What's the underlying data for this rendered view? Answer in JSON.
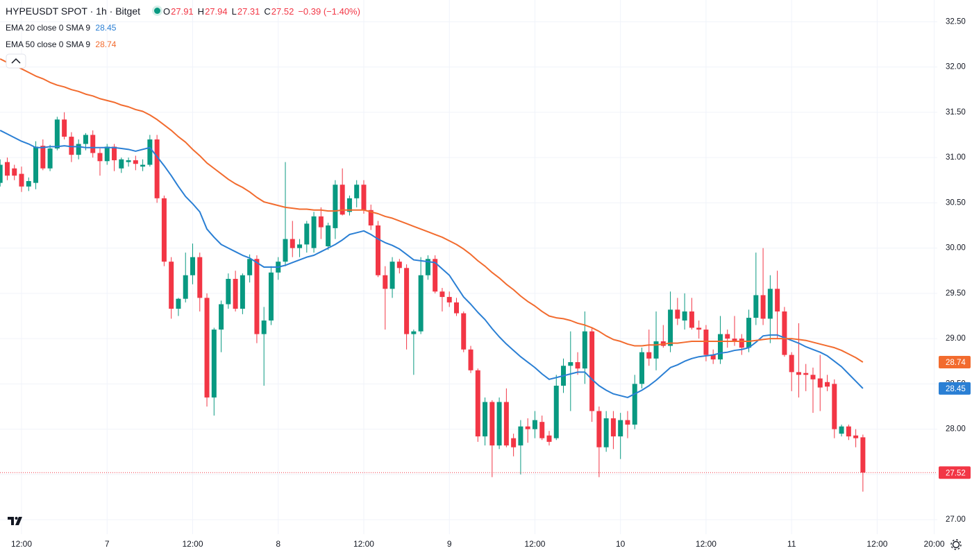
{
  "chart_data": {
    "type": "candlestick",
    "title": "HYPEUSDT SPOT · 1h · Bitget",
    "header": {
      "open_label": "O",
      "open": 27.91,
      "high_label": "H",
      "high": 27.94,
      "low_label": "L",
      "low": 27.31,
      "close_label": "C",
      "close": 27.52,
      "change": "−0.39 (−1.40%)"
    },
    "categories": [
      null,
      null,
      null,
      "12:00",
      null,
      null,
      null,
      null,
      null,
      null,
      null,
      null,
      null,
      null,
      null,
      "7",
      null,
      null,
      null,
      null,
      null,
      null,
      null,
      null,
      null,
      null,
      null,
      "12:00",
      null,
      null,
      null,
      null,
      null,
      null,
      null,
      null,
      null,
      null,
      null,
      "8",
      null,
      null,
      null,
      null,
      null,
      null,
      null,
      null,
      null,
      null,
      null,
      "12:00",
      null,
      null,
      null,
      null,
      null,
      null,
      null,
      null,
      null,
      null,
      null,
      "9",
      null,
      null,
      null,
      null,
      null,
      null,
      null,
      null,
      null,
      null,
      null,
      "12:00",
      null,
      null,
      null,
      null,
      null,
      null,
      null,
      null,
      null,
      null,
      null,
      "10",
      null,
      null,
      null,
      null,
      null,
      null,
      null,
      null,
      null,
      null,
      null,
      "12:00",
      null,
      null,
      null,
      null,
      null,
      null,
      null,
      null,
      null,
      null,
      null,
      "11",
      null,
      null,
      null,
      null,
      null,
      null,
      null,
      null,
      null,
      null,
      null,
      "12:00",
      null,
      null,
      null,
      null,
      null,
      null,
      null,
      "20:00"
    ],
    "open": [
      30.72,
      30.95,
      30.88,
      30.82,
      30.68,
      30.72,
      31.13,
      30.88,
      31.1,
      31.42,
      31.23,
      31.03,
      31.15,
      31.25,
      31.05,
      30.96,
      31.12,
      30.88,
      30.95,
      30.97,
      30.9,
      30.92,
      31.2,
      30.55,
      29.85,
      29.33,
      29.44,
      29.7,
      29.9,
      29.45,
      28.35,
      29.1,
      29.38,
      29.66,
      29.33,
      29.7,
      29.88,
      29.05,
      29.2,
      29.73,
      29.85,
      30.1,
      30.0,
      30.04,
      30.0,
      30.35,
      30.02,
      30.22,
      30.7,
      30.4,
      30.55,
      30.7,
      30.42,
      30.25,
      29.7,
      29.55,
      29.85,
      29.78,
      29.05,
      29.08,
      29.7,
      29.88,
      29.52,
      29.46,
      29.4,
      29.28,
      28.88,
      28.65,
      27.92,
      28.3,
      27.82,
      28.3,
      27.9,
      27.82,
      28.03,
      28.0,
      28.08,
      27.93,
      27.9,
      28.48,
      28.7,
      28.74,
      28.67,
      29.08,
      28.2,
      27.8,
      28.12,
      27.92,
      28.1,
      28.05,
      28.5,
      28.85,
      28.78,
      28.97,
      28.92,
      29.32,
      29.2,
      29.3,
      29.12,
      29.1,
      28.82,
      28.77,
      29.05,
      29.0,
      29.0,
      28.9,
      29.23,
      29.48,
      29.22,
      29.55,
      29.3,
      28.82,
      28.63,
      28.62,
      28.6,
      28.56,
      28.52,
      28.5,
      27.95,
      28.03,
      27.93,
      27.91,
      null,
      null,
      null,
      null,
      null,
      null,
      null,
      null,
      null,
      null
    ],
    "high": [
      30.98,
      31.0,
      30.92,
      30.9,
      30.78,
      31.18,
      31.2,
      31.14,
      31.45,
      31.5,
      31.28,
      31.2,
      31.27,
      31.3,
      31.1,
      31.15,
      31.15,
      31.0,
      31.0,
      31.02,
      30.98,
      31.25,
      31.25,
      30.58,
      29.9,
      29.45,
      29.95,
      30.05,
      29.95,
      29.5,
      29.12,
      29.42,
      29.72,
      29.75,
      29.72,
      29.93,
      29.92,
      29.35,
      29.8,
      29.9,
      30.95,
      30.3,
      30.1,
      30.3,
      30.4,
      30.45,
      30.28,
      30.75,
      30.88,
      30.58,
      30.75,
      30.75,
      30.48,
      30.3,
      29.8,
      29.9,
      29.88,
      29.82,
      29.1,
      29.9,
      29.92,
      29.92,
      29.56,
      29.52,
      29.45,
      29.3,
      28.92,
      28.67,
      28.35,
      28.32,
      28.35,
      28.45,
      27.95,
      28.1,
      28.12,
      28.2,
      28.15,
      27.98,
      28.6,
      28.78,
      29.08,
      28.85,
      29.3,
      29.12,
      28.25,
      28.2,
      28.2,
      28.18,
      28.2,
      28.6,
      28.9,
      29.1,
      29.3,
      29.15,
      29.52,
      29.45,
      29.5,
      29.45,
      29.2,
      29.15,
      28.88,
      29.25,
      29.1,
      29.25,
      29.05,
      29.32,
      29.95,
      30.0,
      29.7,
      29.75,
      29.35,
      28.85,
      29.17,
      28.72,
      28.68,
      28.82,
      28.6,
      28.55,
      28.05,
      28.05,
      28.0,
      27.94,
      null,
      null,
      null,
      null,
      null,
      null,
      null,
      null,
      null,
      null
    ],
    "low": [
      30.68,
      30.75,
      30.75,
      30.62,
      30.63,
      30.65,
      30.86,
      30.85,
      31.08,
      31.2,
      30.95,
      30.98,
      31.08,
      31.0,
      30.8,
      30.92,
      30.85,
      30.83,
      30.9,
      30.86,
      30.85,
      30.9,
      30.5,
      29.8,
      29.22,
      29.25,
      29.4,
      29.6,
      29.3,
      28.25,
      28.15,
      28.85,
      29.33,
      29.3,
      29.27,
      29.62,
      28.95,
      28.48,
      29.15,
      29.65,
      29.8,
      29.9,
      29.9,
      29.95,
      29.95,
      30.1,
      29.98,
      30.1,
      30.36,
      30.36,
      30.45,
      30.38,
      30.2,
      29.68,
      29.1,
      29.45,
      29.72,
      28.88,
      28.6,
      29.05,
      29.65,
      29.5,
      29.3,
      29.35,
      29.25,
      28.85,
      28.62,
      27.86,
      27.82,
      27.47,
      27.78,
      27.8,
      27.7,
      27.5,
      27.85,
      27.9,
      27.88,
      27.82,
      27.88,
      28.4,
      28.2,
      28.6,
      28.5,
      28.08,
      27.47,
      27.75,
      27.78,
      27.67,
      27.9,
      28.0,
      28.45,
      28.7,
      28.65,
      28.9,
      28.85,
      29.15,
      29.1,
      29.1,
      29.0,
      28.75,
      28.72,
      28.72,
      28.9,
      28.92,
      28.82,
      28.85,
      29.15,
      29.15,
      28.95,
      29.0,
      28.8,
      28.42,
      28.35,
      28.42,
      28.18,
      28.2,
      28.42,
      27.9,
      27.92,
      27.88,
      27.8,
      27.31,
      null,
      null,
      null,
      null,
      null,
      null,
      null,
      null,
      null,
      null
    ],
    "close": [
      30.92,
      30.8,
      30.8,
      30.68,
      30.74,
      31.12,
      30.88,
      31.1,
      31.42,
      31.23,
      31.03,
      31.15,
      31.25,
      31.05,
      30.96,
      31.12,
      30.97,
      30.98,
      30.97,
      30.93,
      30.92,
      31.2,
      30.55,
      29.85,
      29.33,
      29.44,
      29.7,
      29.9,
      29.45,
      28.35,
      29.1,
      29.38,
      29.66,
      29.33,
      29.7,
      29.88,
      29.05,
      29.2,
      29.73,
      29.85,
      30.1,
      30.0,
      30.04,
      30.27,
      30.35,
      30.23,
      30.25,
      30.7,
      30.37,
      30.55,
      30.7,
      30.42,
      30.25,
      29.7,
      29.55,
      29.85,
      29.78,
      29.05,
      29.08,
      29.7,
      29.88,
      29.52,
      29.46,
      29.4,
      29.28,
      28.88,
      28.65,
      27.92,
      28.3,
      27.82,
      28.3,
      27.82,
      27.8,
      28.03,
      28.0,
      28.1,
      27.9,
      27.86,
      28.48,
      28.7,
      28.74,
      28.67,
      29.08,
      28.2,
      27.8,
      28.12,
      27.92,
      28.1,
      28.05,
      28.5,
      28.85,
      28.78,
      28.97,
      28.92,
      29.32,
      29.22,
      29.3,
      29.12,
      29.1,
      28.82,
      28.77,
      29.05,
      29.0,
      28.97,
      28.9,
      29.23,
      29.48,
      29.22,
      29.55,
      29.3,
      28.82,
      28.63,
      28.6,
      28.6,
      28.55,
      28.46,
      28.47,
      28.0,
      28.03,
      27.92,
      27.9,
      27.52,
      null,
      null,
      null,
      null,
      null,
      null,
      null,
      null,
      null,
      null
    ],
    "up_color": "#089981",
    "down_color": "#f23645",
    "series": [
      {
        "name": "EMA 20 close 0 SMA 9",
        "color": "#2a7fd4",
        "last_value": 28.45,
        "values": [
          31.3,
          31.26,
          31.22,
          31.18,
          31.15,
          31.11,
          31.11,
          31.12,
          31.12,
          31.13,
          31.12,
          31.12,
          31.11,
          31.11,
          31.11,
          31.11,
          31.11,
          31.1,
          31.09,
          31.07,
          31.09,
          31.11,
          31.01,
          30.91,
          30.8,
          30.68,
          30.57,
          30.49,
          30.4,
          30.21,
          30.12,
          30.04,
          30.0,
          29.96,
          29.92,
          29.89,
          29.84,
          29.79,
          29.79,
          29.79,
          29.81,
          29.84,
          29.87,
          29.9,
          29.92,
          29.96,
          30.0,
          30.04,
          30.09,
          30.15,
          30.17,
          30.19,
          30.15,
          30.1,
          30.06,
          30.03,
          29.99,
          29.93,
          29.87,
          29.86,
          29.85,
          29.84,
          29.77,
          29.7,
          29.58,
          29.46,
          29.38,
          29.29,
          29.21,
          29.11,
          29.02,
          28.94,
          28.87,
          28.8,
          28.74,
          28.68,
          28.61,
          28.55,
          28.57,
          28.59,
          28.61,
          28.63,
          28.63,
          28.55,
          28.48,
          28.43,
          28.39,
          28.37,
          28.35,
          28.39,
          28.43,
          28.48,
          28.54,
          28.61,
          28.68,
          28.71,
          28.75,
          28.78,
          28.8,
          28.81,
          28.82,
          28.84,
          28.85,
          28.87,
          28.88,
          28.9,
          28.96,
          29.03,
          29.04,
          29.04,
          29.01,
          28.98,
          28.95,
          28.91,
          28.88,
          28.85,
          28.81,
          28.75,
          28.69,
          28.61,
          28.53,
          28.45,
          null,
          null,
          null,
          null,
          null,
          null,
          null,
          null,
          null,
          null
        ]
      },
      {
        "name": "EMA 50 close 0 SMA 9",
        "color": "#f26b2e",
        "last_value": 28.74,
        "values": [
          32.09,
          32.05,
          32.02,
          31.98,
          31.94,
          31.9,
          31.87,
          31.83,
          31.8,
          31.78,
          31.75,
          31.73,
          31.7,
          31.68,
          31.65,
          31.63,
          31.61,
          31.58,
          31.56,
          31.53,
          31.51,
          31.47,
          31.42,
          31.36,
          31.3,
          31.23,
          31.17,
          31.09,
          31.02,
          30.94,
          30.88,
          30.82,
          30.76,
          30.71,
          30.67,
          30.62,
          30.56,
          30.51,
          30.49,
          30.47,
          30.45,
          30.44,
          30.43,
          30.43,
          30.42,
          30.42,
          30.41,
          30.41,
          30.42,
          30.42,
          30.42,
          30.42,
          30.4,
          30.38,
          30.35,
          30.33,
          30.3,
          30.27,
          30.24,
          30.21,
          30.18,
          30.15,
          30.12,
          30.08,
          30.04,
          29.99,
          29.93,
          29.86,
          29.8,
          29.73,
          29.67,
          29.6,
          29.54,
          29.47,
          29.41,
          29.36,
          29.3,
          29.25,
          29.23,
          29.22,
          29.2,
          29.17,
          29.15,
          29.12,
          29.08,
          29.03,
          28.99,
          28.97,
          28.94,
          28.92,
          28.92,
          28.93,
          28.93,
          28.94,
          28.95,
          28.95,
          28.96,
          28.97,
          28.97,
          28.97,
          28.97,
          28.97,
          28.97,
          28.97,
          28.97,
          28.97,
          28.98,
          28.99,
          29.0,
          29.0,
          29.0,
          29.0,
          28.99,
          28.98,
          28.96,
          28.94,
          28.92,
          28.9,
          28.87,
          28.83,
          28.79,
          28.74,
          null,
          null,
          null,
          null,
          null,
          null,
          null,
          null,
          null,
          null
        ]
      }
    ],
    "ylim": [
      26.84,
      32.74
    ],
    "yticks": [
      {
        "value": 27,
        "label": "27.00"
      },
      {
        "value": 27.5,
        "label": "27.50"
      },
      {
        "value": 28,
        "label": "28.00"
      },
      {
        "value": 28.5,
        "label": "28.50"
      },
      {
        "value": 29,
        "label": "29.00"
      },
      {
        "value": 29.5,
        "label": "29.50"
      },
      {
        "value": 30,
        "label": "30.00"
      },
      {
        "value": 30.5,
        "label": "30.50"
      },
      {
        "value": 31,
        "label": "31.00"
      },
      {
        "value": 31.5,
        "label": "31.50"
      },
      {
        "value": 32,
        "label": "32.00"
      },
      {
        "value": 32.5,
        "label": "32.50"
      }
    ],
    "grid": true,
    "price_badges": [
      {
        "value": 28.74,
        "color": "#f26b2e"
      },
      {
        "value": 28.45,
        "color": "#2a7fd4"
      },
      {
        "value": 27.52,
        "color": "#f23645"
      }
    ]
  }
}
